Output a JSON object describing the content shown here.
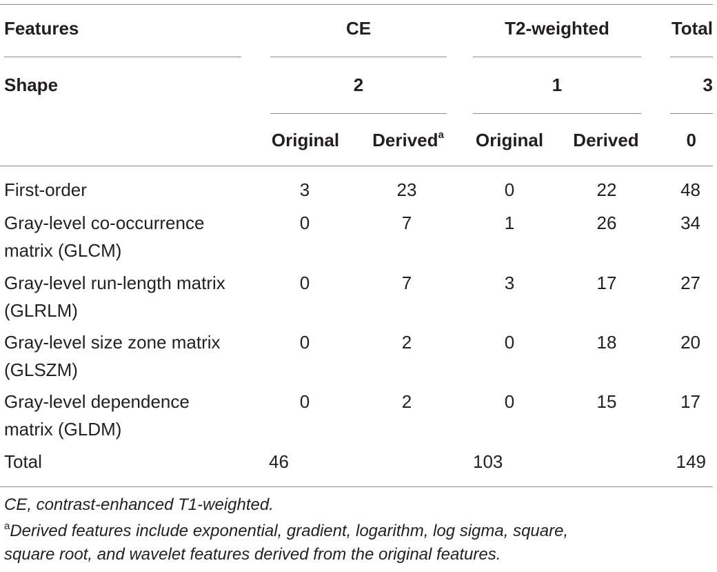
{
  "table": {
    "header1": {
      "features": "Features",
      "ce": "CE",
      "t2": "T2-weighted",
      "total": "Total"
    },
    "header2": {
      "label": "Shape",
      "ce": "2",
      "t2": "1",
      "total": "3"
    },
    "header3": {
      "ce_original": "Original",
      "ce_derived": "Derived",
      "ce_derived_sup": "a",
      "t2_original": "Original",
      "t2_derived": "Derived",
      "total": "0"
    },
    "rows": [
      {
        "line1": "First-order",
        "line2": "",
        "ce_original": "3",
        "ce_derived": "23",
        "t2_original": "0",
        "t2_derived": "22",
        "total": "48"
      },
      {
        "line1": "Gray-level co-occurrence",
        "line2": "matrix (GLCM)",
        "ce_original": "0",
        "ce_derived": "7",
        "t2_original": "1",
        "t2_derived": "26",
        "total": "34"
      },
      {
        "line1": "Gray-level run-length matrix",
        "line2": "(GLRLM)",
        "ce_original": "0",
        "ce_derived": "7",
        "t2_original": "3",
        "t2_derived": "17",
        "total": "27"
      },
      {
        "line1": "Gray-level size zone matrix",
        "line2": "(GLSZM)",
        "ce_original": "0",
        "ce_derived": "2",
        "t2_original": "0",
        "t2_derived": "18",
        "total": "20"
      },
      {
        "line1": "Gray-level dependence",
        "line2": "matrix (GLDM)",
        "ce_original": "0",
        "ce_derived": "2",
        "t2_original": "0",
        "t2_derived": "15",
        "total": "17"
      }
    ],
    "total_row": {
      "label": "Total",
      "ce": "46",
      "t2": "103",
      "total": "149"
    }
  },
  "footnotes": {
    "abbrev": "CE, contrast-enhanced T1-weighted.",
    "note_marker": "a",
    "note_line1": "Derived features include exponential, gradient, logarithm, log sigma, square,",
    "note_line2": "square root, and wavelet features derived from the original features."
  }
}
